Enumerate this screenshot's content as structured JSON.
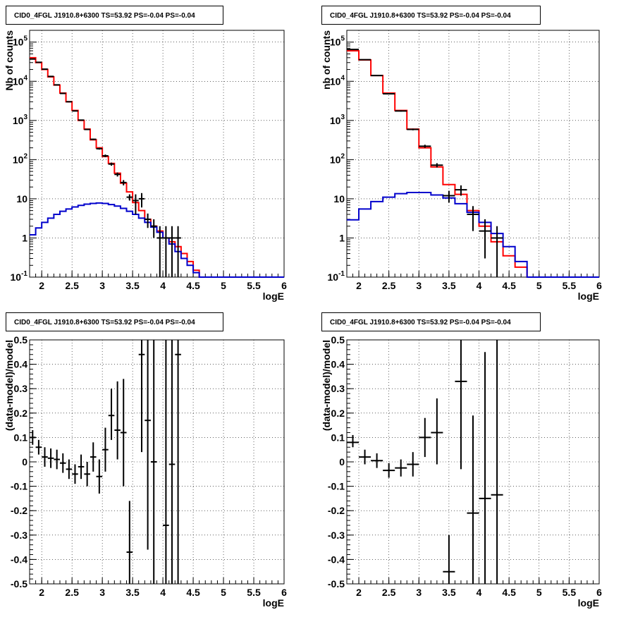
{
  "colors": {
    "data": "#000000",
    "total_model": "#ff0000",
    "source_model": "#0000cc",
    "grid": "#000000"
  },
  "chart_data": [
    {
      "type": "line",
      "title": "CID0_4FGL J1910.8+6300 TS=53.92 PS=-0.04 PS=-0.04",
      "xlabel": "logE",
      "ylabel": "Nb of counts",
      "yscale": "log",
      "xlim": [
        1.8,
        6
      ],
      "ylim": [
        0.1,
        200000
      ],
      "grid": true,
      "x_ticks": [
        "2",
        "2.5",
        "3",
        "3.5",
        "4",
        "4.5",
        "5",
        "5.5",
        "6"
      ],
      "y_ticks": [
        "10^-1",
        "1",
        "10",
        "10^2",
        "10^3",
        "10^4",
        "10^5"
      ],
      "bin_edges": [
        1.8,
        1.9,
        2.0,
        2.1,
        2.2,
        2.3,
        2.4,
        2.5,
        2.6,
        2.7,
        2.8,
        2.9,
        3.0,
        3.1,
        3.2,
        3.3,
        3.4,
        3.5,
        3.6,
        3.7,
        3.8,
        3.9,
        4.0,
        4.1,
        4.2,
        4.3,
        4.4,
        4.5,
        4.6,
        4.7,
        4.8,
        4.9,
        5.0,
        5.1,
        5.2,
        5.3,
        5.4,
        5.5,
        5.6,
        5.7,
        5.8,
        5.9,
        6.0
      ],
      "series": [
        {
          "name": "total_model",
          "kind": "step",
          "values": [
            40000,
            30000,
            20000,
            13000,
            8000,
            5000,
            3000,
            1800,
            1000,
            600,
            320,
            200,
            120,
            80,
            45,
            25,
            15,
            8,
            5,
            3,
            2,
            1.5,
            1,
            0.8,
            0.6,
            0.4,
            0.25,
            0.15,
            0.1,
            0.1,
            0.1,
            0.1,
            0.1,
            0.1,
            0.1,
            0.1,
            0.1,
            0.1,
            0.1,
            0.1,
            0.1,
            0.1
          ]
        },
        {
          "name": "source_model",
          "kind": "step",
          "values": [
            1.2,
            1.8,
            2.5,
            3.2,
            4,
            4.8,
            5.5,
            6.2,
            6.8,
            7.3,
            7.6,
            7.8,
            7.6,
            7.1,
            6.5,
            5.7,
            4.8,
            4,
            3.2,
            2.5,
            1.9,
            1.4,
            1,
            0.7,
            0.45,
            0.3,
            0.2,
            0.13,
            0.1,
            0.1,
            0.1,
            0.1,
            0.1,
            0.1,
            0.1,
            0.1,
            0.1,
            0.1,
            0.1,
            0.1,
            0.1,
            0.1
          ]
        },
        {
          "name": "data",
          "kind": "errorbar",
          "points": [
            {
              "x": 1.85,
              "y": 37000,
              "lo": 36500,
              "hi": 37500
            },
            {
              "x": 1.95,
              "y": 30500,
              "lo": 30000,
              "hi": 31000
            },
            {
              "x": 2.05,
              "y": 20400,
              "lo": 20000,
              "hi": 20800
            },
            {
              "x": 2.15,
              "y": 13300,
              "lo": 13000,
              "hi": 13600
            },
            {
              "x": 2.25,
              "y": 8100,
              "lo": 7900,
              "hi": 8300
            },
            {
              "x": 2.35,
              "y": 4900,
              "lo": 4750,
              "hi": 5050
            },
            {
              "x": 2.45,
              "y": 3000,
              "lo": 2900,
              "hi": 3100
            },
            {
              "x": 2.55,
              "y": 1750,
              "lo": 1700,
              "hi": 1800
            },
            {
              "x": 2.65,
              "y": 1020,
              "lo": 990,
              "hi": 1050
            },
            {
              "x": 2.75,
              "y": 590,
              "lo": 570,
              "hi": 610
            },
            {
              "x": 2.85,
              "y": 330,
              "lo": 315,
              "hi": 345
            },
            {
              "x": 2.95,
              "y": 190,
              "lo": 180,
              "hi": 200
            },
            {
              "x": 3.05,
              "y": 125,
              "lo": 115,
              "hi": 135
            },
            {
              "x": 3.15,
              "y": 77,
              "lo": 70,
              "hi": 84
            },
            {
              "x": 3.25,
              "y": 42,
              "lo": 37,
              "hi": 47
            },
            {
              "x": 3.35,
              "y": 26,
              "lo": 22,
              "hi": 30
            },
            {
              "x": 3.45,
              "y": 11,
              "lo": 9,
              "hi": 13
            },
            {
              "x": 3.55,
              "y": 9,
              "lo": 4,
              "hi": 13
            },
            {
              "x": 3.65,
              "y": 10,
              "lo": 6,
              "hi": 14
            },
            {
              "x": 3.75,
              "y": 3,
              "lo": 1.8,
              "hi": 4.2
            },
            {
              "x": 3.85,
              "y": 2,
              "lo": 1,
              "hi": 3
            },
            {
              "x": 3.95,
              "y": 1,
              "lo": 0.1,
              "hi": 2
            },
            {
              "x": 4.05,
              "y": 1,
              "lo": 0.1,
              "hi": 2
            },
            {
              "x": 4.15,
              "y": 1,
              "lo": 0.1,
              "hi": 2
            },
            {
              "x": 4.25,
              "y": 1,
              "lo": 0.1,
              "hi": 2
            }
          ]
        }
      ]
    },
    {
      "type": "line",
      "title": "CID0_4FGL J1910.8+6300 TS=53.92 PS=-0.04 PS=-0.04",
      "xlabel": "logE",
      "ylabel": "nb of counts",
      "yscale": "log",
      "xlim": [
        1.8,
        6
      ],
      "ylim": [
        0.1,
        200000
      ],
      "grid": true,
      "x_ticks": [
        "2",
        "2.5",
        "3",
        "3.5",
        "4",
        "4.5",
        "5",
        "5.5",
        "6"
      ],
      "y_ticks": [
        "10^-1",
        "1",
        "10",
        "10^2",
        "10^3",
        "10^4",
        "10^5"
      ],
      "bin_edges": [
        1.8,
        2.0,
        2.2,
        2.4,
        2.6,
        2.8,
        3.0,
        3.2,
        3.4,
        3.6,
        3.8,
        4.0,
        4.2,
        4.4,
        4.6,
        4.8,
        5.0,
        5.2,
        5.4,
        5.6,
        5.8,
        6.0
      ],
      "series": [
        {
          "name": "total_model",
          "kind": "step",
          "values": [
            60000,
            35000,
            14000,
            5000,
            1800,
            600,
            200,
            65,
            23,
            13,
            5,
            2,
            0.8,
            0.35,
            0.18,
            0.1,
            0.1,
            0.1,
            0.1,
            0.1,
            0.1
          ]
        },
        {
          "name": "source_model",
          "kind": "step",
          "values": [
            2.9,
            5.5,
            8.5,
            11,
            13.5,
            14.5,
            14.5,
            12.5,
            10.5,
            7.5,
            4.5,
            2.5,
            1.3,
            0.6,
            0.25,
            0.1,
            0.1,
            0.1,
            0.1,
            0.1,
            0.1
          ]
        },
        {
          "name": "data",
          "kind": "errorbar",
          "points": [
            {
              "x": 1.9,
              "y": 65000,
              "lo": 64000,
              "hi": 66000
            },
            {
              "x": 2.1,
              "y": 35700,
              "lo": 35000,
              "hi": 36400
            },
            {
              "x": 2.3,
              "y": 14000,
              "lo": 13700,
              "hi": 14300
            },
            {
              "x": 2.5,
              "y": 4800,
              "lo": 4650,
              "hi": 4950
            },
            {
              "x": 2.7,
              "y": 1750,
              "lo": 1680,
              "hi": 1820
            },
            {
              "x": 2.9,
              "y": 590,
              "lo": 560,
              "hi": 620
            },
            {
              "x": 3.1,
              "y": 220,
              "lo": 200,
              "hi": 240
            },
            {
              "x": 3.3,
              "y": 72,
              "lo": 63,
              "hi": 81
            },
            {
              "x": 3.5,
              "y": 12,
              "lo": 8,
              "hi": 16
            },
            {
              "x": 3.7,
              "y": 17,
              "lo": 12,
              "hi": 22
            },
            {
              "x": 3.9,
              "y": 4,
              "lo": 1.5,
              "hi": 6.5
            },
            {
              "x": 4.1,
              "y": 1.5,
              "lo": 0.3,
              "hi": 3
            },
            {
              "x": 4.3,
              "y": 1,
              "lo": 0.1,
              "hi": 2
            }
          ]
        }
      ]
    },
    {
      "type": "scatter",
      "title": "CID0_4FGL J1910.8+6300 TS=53.92 PS=-0.04 PS=-0.04",
      "xlabel": "logE",
      "ylabel": "(data-model)/model",
      "xlim": [
        1.8,
        6
      ],
      "ylim": [
        -0.5,
        0.5
      ],
      "grid": true,
      "x_ticks": [
        "2",
        "2.5",
        "3",
        "3.5",
        "4",
        "4.5",
        "5",
        "5.5",
        "6"
      ],
      "y_ticks": [
        "-0.5",
        "-0.4",
        "-0.3",
        "-0.2",
        "-0.1",
        "0",
        "0.1",
        "0.2",
        "0.3",
        "0.4",
        "0.5"
      ],
      "xerr": 0.05,
      "series": [
        {
          "name": "residuals",
          "kind": "errorbar",
          "points": [
            {
              "x": 1.85,
              "y": 0.1,
              "lo": 0.07,
              "hi": 0.13
            },
            {
              "x": 1.95,
              "y": 0.06,
              "lo": 0.03,
              "hi": 0.09
            },
            {
              "x": 2.05,
              "y": 0.02,
              "lo": -0.02,
              "hi": 0.06
            },
            {
              "x": 2.15,
              "y": 0.015,
              "lo": -0.025,
              "hi": 0.055
            },
            {
              "x": 2.25,
              "y": 0.01,
              "lo": -0.03,
              "hi": 0.05
            },
            {
              "x": 2.35,
              "y": -0.005,
              "lo": -0.045,
              "hi": 0.035
            },
            {
              "x": 2.45,
              "y": -0.03,
              "lo": -0.07,
              "hi": 0.01
            },
            {
              "x": 2.55,
              "y": -0.05,
              "lo": -0.09,
              "hi": -0.01
            },
            {
              "x": 2.65,
              "y": -0.02,
              "lo": -0.07,
              "hi": 0.03
            },
            {
              "x": 2.75,
              "y": -0.05,
              "lo": -0.1,
              "hi": 0.0
            },
            {
              "x": 2.85,
              "y": 0.02,
              "lo": -0.04,
              "hi": 0.08
            },
            {
              "x": 2.95,
              "y": -0.06,
              "lo": -0.13,
              "hi": 0.01
            },
            {
              "x": 3.05,
              "y": 0.05,
              "lo": -0.04,
              "hi": 0.14
            },
            {
              "x": 3.15,
              "y": 0.19,
              "lo": 0.09,
              "hi": 0.3
            },
            {
              "x": 3.25,
              "y": 0.13,
              "lo": 0.01,
              "hi": 0.33
            },
            {
              "x": 3.35,
              "y": 0.12,
              "lo": -0.1,
              "hi": 0.34
            },
            {
              "x": 3.45,
              "y": -0.37,
              "lo": -0.5,
              "hi": -0.16
            },
            {
              "x": 3.65,
              "y": 0.44,
              "lo": 0.04,
              "hi": 0.5
            },
            {
              "x": 3.75,
              "y": 0.17,
              "lo": -0.36,
              "hi": 0.5
            },
            {
              "x": 3.85,
              "y": 0.0,
              "lo": -0.5,
              "hi": 0.5
            },
            {
              "x": 4.05,
              "y": -0.26,
              "lo": -0.5,
              "hi": 0.5
            },
            {
              "x": 4.15,
              "y": -0.01,
              "lo": -0.5,
              "hi": 0.5
            },
            {
              "x": 4.25,
              "y": 0.44,
              "lo": -0.5,
              "hi": 0.5
            }
          ]
        }
      ]
    },
    {
      "type": "scatter",
      "title": "CID0_4FGL J1910.8+6300 TS=53.92 PS=-0.04 PS=-0.04",
      "xlabel": "logE",
      "ylabel": "(data-model)/model",
      "xlim": [
        1.8,
        6
      ],
      "ylim": [
        -0.5,
        0.5
      ],
      "grid": true,
      "x_ticks": [
        "2",
        "2.5",
        "3",
        "3.5",
        "4",
        "4.5",
        "5",
        "5.5",
        "6"
      ],
      "y_ticks": [
        "-0.5",
        "-0.4",
        "-0.3",
        "-0.2",
        "-0.1",
        "0",
        "0.1",
        "0.2",
        "0.3",
        "0.4",
        "0.5"
      ],
      "xerr": 0.1,
      "series": [
        {
          "name": "residuals",
          "kind": "errorbar",
          "points": [
            {
              "x": 1.9,
              "y": 0.08,
              "lo": 0.06,
              "hi": 0.11
            },
            {
              "x": 2.1,
              "y": 0.02,
              "lo": -0.01,
              "hi": 0.05
            },
            {
              "x": 2.3,
              "y": 0.005,
              "lo": -0.025,
              "hi": 0.035
            },
            {
              "x": 2.5,
              "y": -0.035,
              "lo": -0.065,
              "hi": -0.005
            },
            {
              "x": 2.7,
              "y": -0.025,
              "lo": -0.06,
              "hi": 0.01
            },
            {
              "x": 2.9,
              "y": -0.01,
              "lo": -0.06,
              "hi": 0.04
            },
            {
              "x": 3.1,
              "y": 0.1,
              "lo": 0.02,
              "hi": 0.18
            },
            {
              "x": 3.3,
              "y": 0.12,
              "lo": -0.01,
              "hi": 0.26
            },
            {
              "x": 3.5,
              "y": -0.45,
              "lo": -0.5,
              "hi": -0.3
            },
            {
              "x": 3.7,
              "y": 0.33,
              "lo": -0.03,
              "hi": 0.5
            },
            {
              "x": 3.9,
              "y": -0.21,
              "lo": -0.5,
              "hi": 0.19
            },
            {
              "x": 4.1,
              "y": -0.15,
              "lo": -0.5,
              "hi": 0.45
            },
            {
              "x": 4.3,
              "y": -0.135,
              "lo": -0.5,
              "hi": 0.5
            }
          ]
        }
      ]
    }
  ]
}
